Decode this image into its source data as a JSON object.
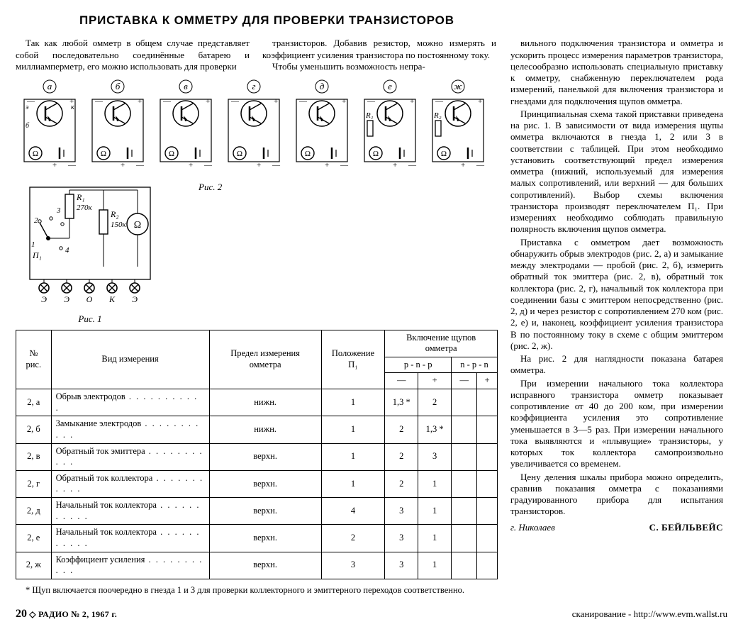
{
  "title": "ПРИСТАВКА К ОММЕТРУ ДЛЯ ПРОВЕРКИ ТРАНЗИСТОРОВ",
  "intro": {
    "col1": "Так как любой омметр в общем случае представляет собой последовательно соединённые батарею и миллиамперметр, его можно использовать для проверки",
    "col2a": "транзисторов. Добавив резистор, можно измерять и коэффициент усиления транзистора по постоянному току.",
    "col2b": "Чтобы уменьшить возможность непра-"
  },
  "fig2_strip": {
    "labels": [
      "а",
      "б",
      "в",
      "г",
      "д",
      "е",
      "ж"
    ],
    "node_labels": {
      "e": "э",
      "k": "к",
      "b": "б"
    },
    "colors": {
      "stroke": "#000000",
      "bg": "#ffffff"
    },
    "caption": "Рис. 2",
    "resistors": {
      "R1_cell": "е",
      "R1": "R₁",
      "R2_cell": "ж",
      "R2": "R₂"
    }
  },
  "fig1": {
    "caption": "Рис. 1",
    "R1": "R₁",
    "R1_val": "270к",
    "R2": "R₂",
    "R2_val": "150к",
    "P1": "П₁",
    "sockets": [
      "Э",
      "Э",
      "О",
      "К",
      "Э"
    ],
    "nums": [
      "1",
      "2",
      "3",
      "4"
    ]
  },
  "table": {
    "head": {
      "num": "№ рис.",
      "kind": "Вид измерения",
      "limit": "Предел измерения омметра",
      "pos": "Положение П₁",
      "probes": "Включение щупов омметра",
      "pnp": "p - n - p",
      "npn": "n - p - n",
      "minus": "—",
      "plus": "+"
    },
    "rows": [
      {
        "n": "2, а",
        "kind": "Обрыв электродов",
        "limit": "нижн.",
        "pos": "1",
        "pm": "1,3 *",
        "pp": "2",
        "nm": "",
        "np": ""
      },
      {
        "n": "2, б",
        "kind": "Замыкание электродов",
        "limit": "нижн.",
        "pos": "1",
        "pm": "2",
        "pp": "1,3 *",
        "nm": "",
        "np": ""
      },
      {
        "n": "2, в",
        "kind": "Обратный ток эмиттера",
        "limit": "верхн.",
        "pos": "1",
        "pm": "2",
        "pp": "3",
        "nm": "",
        "np": ""
      },
      {
        "n": "2, г",
        "kind": "Обратный ток коллектора",
        "limit": "верхн.",
        "pos": "1",
        "pm": "2",
        "pp": "1",
        "nm": "",
        "np": ""
      },
      {
        "n": "2, д",
        "kind": "Начальный ток коллектора",
        "limit": "верхн.",
        "pos": "4",
        "pm": "3",
        "pp": "1",
        "nm": "",
        "np": ""
      },
      {
        "n": "2, е",
        "kind": "Начальный ток коллектора",
        "limit": "верхн.",
        "pos": "2",
        "pm": "3",
        "pp": "1",
        "nm": "",
        "np": ""
      },
      {
        "n": "2, ж",
        "kind": "Коэффициент усиления",
        "limit": "верхн.",
        "pos": "3",
        "pm": "3",
        "pp": "1",
        "nm": "",
        "np": ""
      }
    ]
  },
  "footnote": "* Щуп включается поочередно в гнезда 1 и 3 для проверки коллекторного и эмиттерного переходов соответственно.",
  "right": {
    "p1": "вильного подключения транзистора и омметра и ускорить процесс измерения параметров транзистора, целесообразно использовать специальную приставку к омметру, снабженную переключателем рода измерений, панелькой для включения транзистора и гнездами для подключения щупов омметра.",
    "p2": "Принципиальная схема такой приставки приведена на рис. 1. В зависимости от вида измерения щупы омметра включаются в гнезда 1, 2 или 3 в соответствии с таблицей. При этом необходимо установить соответствующий предел измерения омметра (нижний, используемый для измерения малых сопротивлений, или верхний — для больших сопротивлений). Выбор схемы включения транзистора производят переключателем П₁. При измерениях необходимо соблюдать правильную полярность включения щупов омметра.",
    "p3": "Приставка с омметром дает возможность обнаружить обрыв электродов (рис. 2, а) и замыкание между электродами — пробой (рис. 2, б), измерить обратный ток эмиттера (рис. 2, в), обратный ток коллектора (рис. 2, г), начальный ток коллектора при соединении базы с эмиттером непосредственно (рис. 2, д) и через резистор с сопротивлением 270 ком (рис. 2, е) и, наконец, коэффициент усиления транзистора B по постоянному току в схеме с общим эмиттером (рис. 2, ж).",
    "p4": "На рис. 2 для наглядности показана батарея омметра.",
    "p5": "При измерении начального тока коллектора исправного транзистора омметр показывает сопротивление от 40 до 200 ком, при измерении коэффициента усиления это сопротивление уменьшается в 3—5 раз. При измерении начального тока выявляются и «плывущие» транзисторы, у которых ток коллектора самопроизвольно увеличивается со временем.",
    "p6": "Цену деления шкалы прибора можно определить, сравнив показания омметра с показаниями градуированного прибора для испытания транзисторов.",
    "city": "г. Николаев",
    "author": "С. БЕЙЛЬВЕЙС"
  },
  "footer": {
    "page": "20",
    "pub": "◇ РАДИО № 2, 1967 г.",
    "scan": "сканирование - http://www.evm.wallst.ru"
  }
}
